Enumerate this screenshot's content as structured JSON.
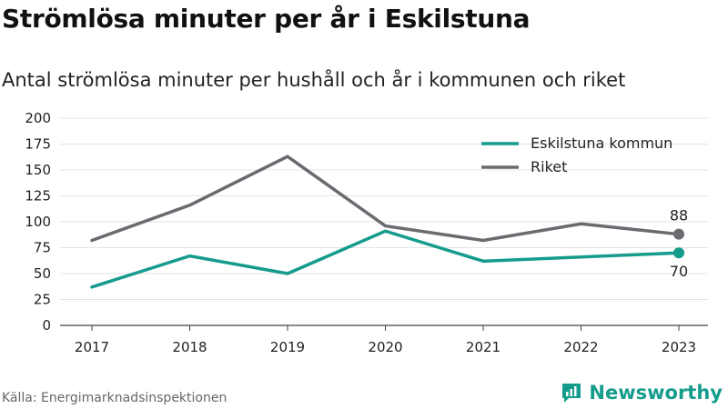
{
  "chart_data": {
    "type": "line",
    "title": "Strömlösa minuter per år i Eskilstuna",
    "subtitle": "Antal strömlösa minuter per hushåll och år i kommunen och riket",
    "x": [
      "2017",
      "2018",
      "2019",
      "2020",
      "2021",
      "2022",
      "2023"
    ],
    "series": [
      {
        "name": "Eskilstuna kommun",
        "color": "#159c8c",
        "values": [
          37,
          67,
          50,
          91,
          62,
          66,
          70
        ]
      },
      {
        "name": "Riket",
        "color": "#6b6a70",
        "values": [
          82,
          116,
          163,
          96,
          82,
          98,
          88
        ]
      }
    ],
    "ylim": [
      0,
      200
    ],
    "yticks": [
      0,
      25,
      50,
      75,
      100,
      125,
      150,
      175,
      200
    ],
    "grid": true,
    "legend": "top-right",
    "end_labels": [
      "88",
      "70"
    ]
  },
  "source": "Källa: Energimarknadsinspektionen",
  "brand": {
    "name": "Newsworthy",
    "icon": "bar-chart-icon"
  }
}
